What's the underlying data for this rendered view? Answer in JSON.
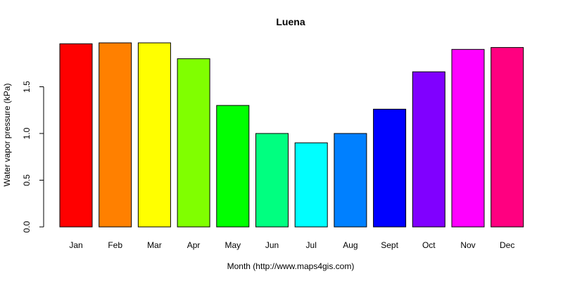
{
  "chart_data": {
    "type": "bar",
    "title": "Luena",
    "xlabel": "Month (http://www.maps4gis.com)",
    "ylabel": "Water vapor pressure (kPa)",
    "categories": [
      "Jan",
      "Feb",
      "Mar",
      "Apr",
      "May",
      "Jun",
      "Jul",
      "Aug",
      "Sept",
      "Oct",
      "Nov",
      "Dec"
    ],
    "values": [
      1.96,
      1.97,
      1.97,
      1.8,
      1.3,
      1.0,
      0.9,
      1.0,
      1.26,
      1.66,
      1.9,
      1.92
    ],
    "colors": [
      "#FF0000",
      "#FF8000",
      "#FFFF00",
      "#80FF00",
      "#00FF00",
      "#00FF80",
      "#00FFFF",
      "#0080FF",
      "#0000FF",
      "#8000FF",
      "#FF00FF",
      "#FF0080"
    ],
    "yticks": [
      "0.0",
      "0.5",
      "1.0",
      "1.5"
    ],
    "ylim": [
      0,
      1.97
    ],
    "grid": false,
    "legend": "none"
  }
}
